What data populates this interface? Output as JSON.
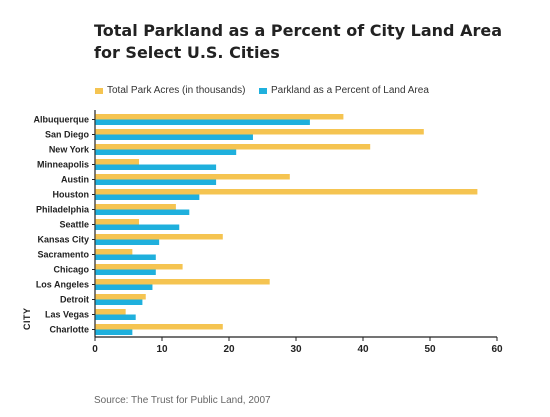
{
  "chart_data": {
    "type": "bar",
    "orientation": "horizontal",
    "title": [
      "Total Parkland as a Percent of City Land Area",
      "for Select U.S. Cities"
    ],
    "ylabel": "CITY",
    "xlabel": "",
    "categories": [
      "Albuquerque",
      "San Diego",
      "New York",
      "Minneapolis",
      "Austin",
      "Houston",
      "Philadelphia",
      "Seattle",
      "Kansas City",
      "Sacramento",
      "Chicago",
      "Los Angeles",
      "Detroit",
      "Las Vegas",
      "Charlotte"
    ],
    "series": [
      {
        "name": "Total Park Acres (in thousands)",
        "color": "#f5c451",
        "values": [
          37,
          49,
          41,
          6.5,
          29,
          57,
          12,
          6.5,
          19,
          5.5,
          13,
          26,
          7.5,
          4.5,
          19
        ]
      },
      {
        "name": "Parkland as a Percent of Land Area",
        "color": "#1fb0dd",
        "values": [
          32,
          23.5,
          21,
          18,
          18,
          15.5,
          14,
          12.5,
          9.5,
          9,
          9,
          8.5,
          7,
          6,
          5.5
        ]
      }
    ],
    "xlim": [
      0,
      60
    ],
    "xticks": [
      0,
      10,
      20,
      30,
      40,
      50,
      60
    ],
    "grid": false,
    "legend_position": "top-left"
  },
  "source": "Source: The Trust for Public Land, 2007"
}
